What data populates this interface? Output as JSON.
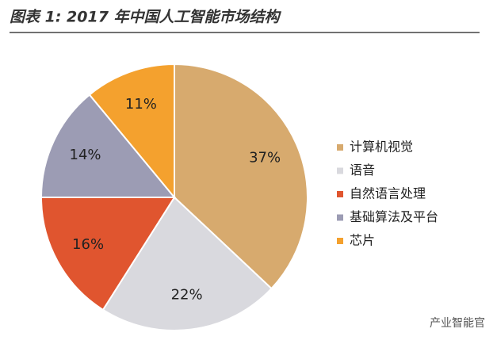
{
  "chart_data": {
    "type": "pie",
    "title": "图表 1: 2017 年中国人工智能市场结构",
    "categories": [
      "计算机视觉",
      "语音",
      "自然语言处理",
      "基础算法及平台",
      "芯片"
    ],
    "values": [
      37,
      22,
      16,
      14,
      11
    ],
    "value_labels": [
      "37%",
      "22%",
      "16%",
      "14%",
      "11%"
    ],
    "colors": [
      "#D7AA6E",
      "#D9D9DE",
      "#E0552F",
      "#9C9CB4",
      "#F4A12E"
    ],
    "legend": "right"
  },
  "watermark": "产业智能官"
}
